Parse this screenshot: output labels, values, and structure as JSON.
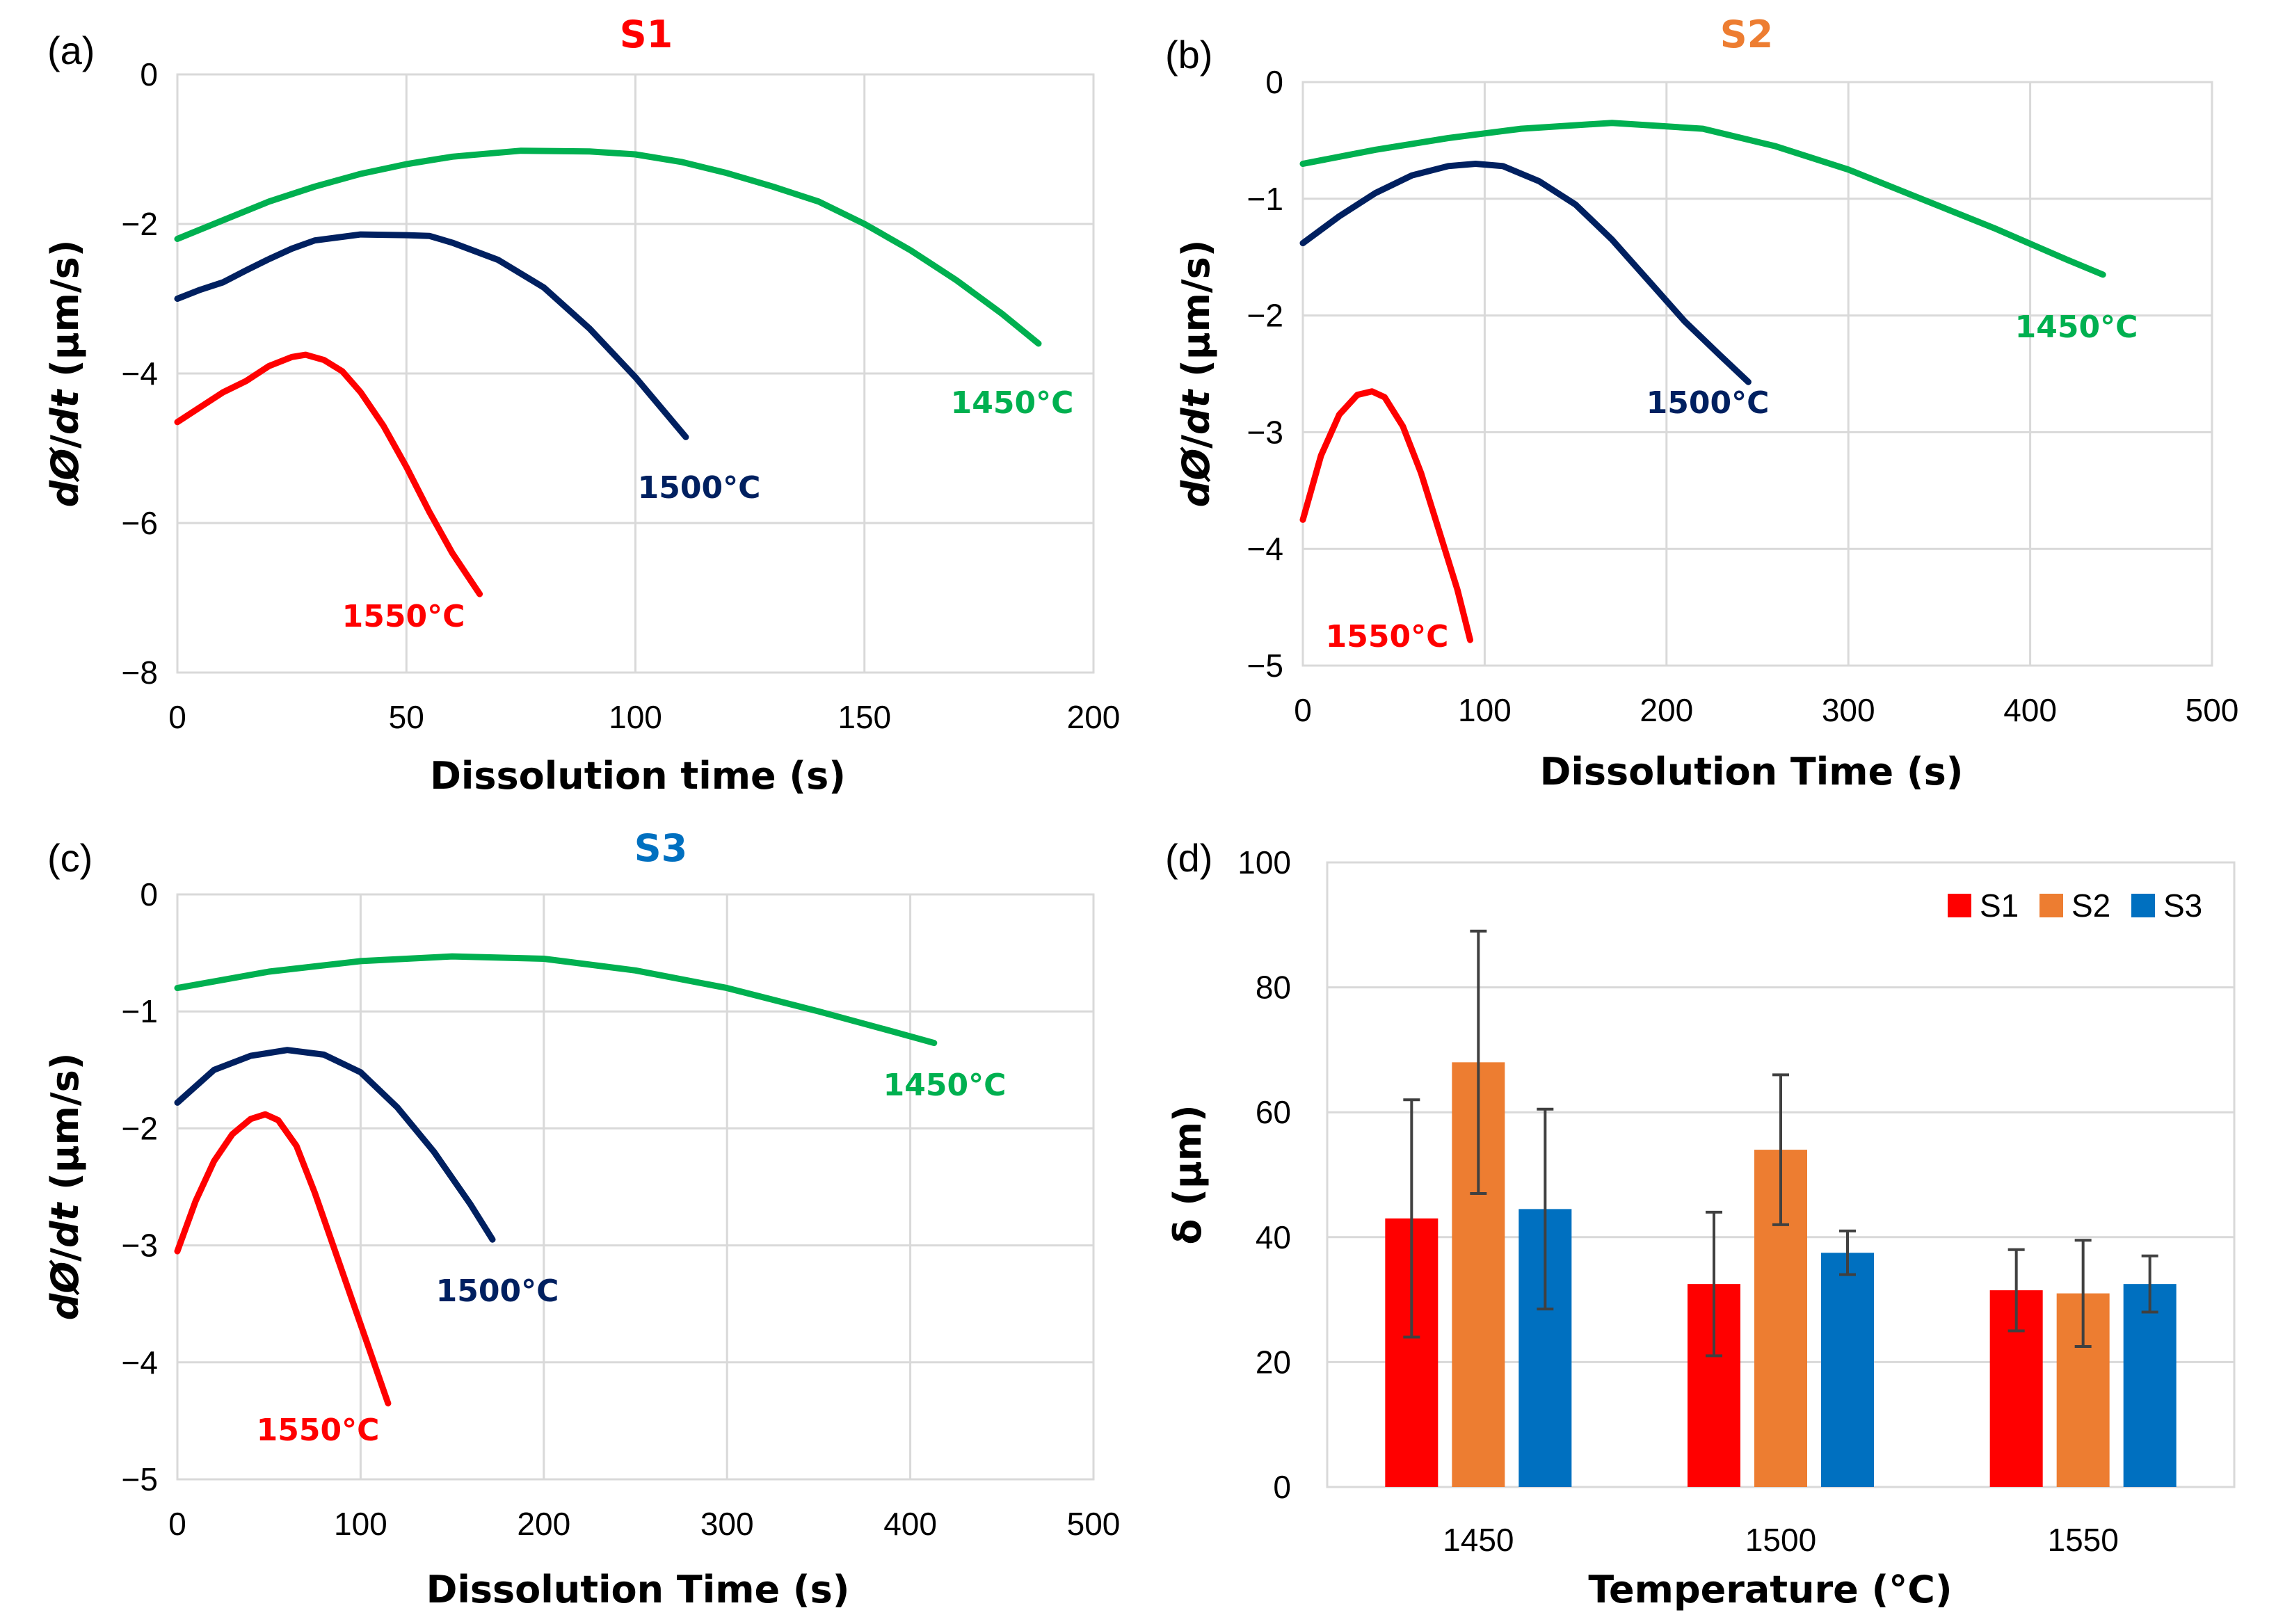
{
  "colors": {
    "s1_red": "#ff0000",
    "s2_orange": "#ed7d31",
    "s3_blue": "#0070c0",
    "t1450_green": "#00b050",
    "t1500_navy": "#002060",
    "t1550_red": "#ff0000"
  },
  "chart_data": [
    {
      "type": "line",
      "panel": "(a)",
      "title": "S1",
      "xlabel": "Dissolution time (s)",
      "ylabel_parts": [
        "d",
        "Ø",
        "/",
        "dt",
        " (µm/s)"
      ],
      "xlim": [
        0,
        200
      ],
      "ylim": [
        -8,
        0
      ],
      "xticks": [
        0,
        50,
        100,
        150,
        200
      ],
      "yticks": [
        0,
        -2,
        -4,
        -6,
        -8
      ],
      "xtick_labels": [
        "0",
        "50",
        "100",
        "150",
        "200"
      ],
      "ytick_labels": [
        "0",
        "−2",
        "−4",
        "−6",
        "−8"
      ],
      "series": [
        {
          "name": "1450°C",
          "label": "1450°C",
          "color_key": "t1450_green",
          "x": [
            0,
            10,
            20,
            30,
            40,
            50,
            60,
            75,
            90,
            100,
            110,
            120,
            130,
            140,
            150,
            160,
            170,
            180,
            188
          ],
          "y": [
            -2.2,
            -1.95,
            -1.7,
            -1.5,
            -1.33,
            -1.2,
            -1.1,
            -1.02,
            -1.03,
            -1.07,
            -1.17,
            -1.32,
            -1.5,
            -1.7,
            -2.0,
            -2.35,
            -2.75,
            -3.2,
            -3.6
          ]
        },
        {
          "name": "1500°C",
          "label": "1500°C",
          "color_key": "t1500_navy",
          "x": [
            0,
            5,
            10,
            15,
            20,
            25,
            30,
            40,
            50,
            55,
            60,
            70,
            80,
            90,
            100,
            111
          ],
          "y": [
            -3.0,
            -2.88,
            -2.78,
            -2.62,
            -2.47,
            -2.33,
            -2.22,
            -2.14,
            -2.15,
            -2.16,
            -2.25,
            -2.48,
            -2.85,
            -3.4,
            -4.05,
            -4.85
          ]
        },
        {
          "name": "1550°C",
          "label": "1550°C",
          "color_key": "t1550_red",
          "x": [
            0,
            5,
            10,
            15,
            20,
            25,
            28,
            32,
            36,
            40,
            45,
            50,
            55,
            60,
            66
          ],
          "y": [
            -4.65,
            -4.45,
            -4.25,
            -4.1,
            -3.9,
            -3.78,
            -3.75,
            -3.82,
            -3.97,
            -4.25,
            -4.7,
            -5.25,
            -5.85,
            -6.4,
            -6.95
          ]
        }
      ]
    },
    {
      "type": "line",
      "panel": "(b)",
      "title": "S2",
      "xlabel": "Dissolution Time (s)",
      "ylabel_parts": [
        "d",
        "Ø",
        "/",
        "dt",
        " (µm/s)"
      ],
      "xlim": [
        0,
        500
      ],
      "ylim": [
        -5,
        0
      ],
      "xticks": [
        0,
        100,
        200,
        300,
        400,
        500
      ],
      "yticks": [
        0,
        -1,
        -2,
        -3,
        -4,
        -5
      ],
      "xtick_labels": [
        "0",
        "100",
        "200",
        "300",
        "400",
        "500"
      ],
      "ytick_labels": [
        "0",
        "−1",
        "−2",
        "−3",
        "−4",
        "−5"
      ],
      "series": [
        {
          "name": "1450°C",
          "label": "1450°C",
          "color_key": "t1450_green",
          "x": [
            0,
            40,
            80,
            120,
            170,
            220,
            260,
            300,
            340,
            380,
            420,
            440
          ],
          "y": [
            -0.7,
            -0.58,
            -0.48,
            -0.4,
            -0.35,
            -0.4,
            -0.55,
            -0.75,
            -1.0,
            -1.25,
            -1.52,
            -1.65
          ]
        },
        {
          "name": "1500°C",
          "label": "1500°C",
          "color_key": "t1500_navy",
          "x": [
            0,
            20,
            40,
            60,
            80,
            95,
            110,
            130,
            150,
            170,
            190,
            210,
            230,
            245
          ],
          "y": [
            -1.38,
            -1.15,
            -0.95,
            -0.8,
            -0.72,
            -0.7,
            -0.72,
            -0.85,
            -1.05,
            -1.35,
            -1.7,
            -2.05,
            -2.35,
            -2.57
          ]
        },
        {
          "name": "1550°C",
          "label": "1550°C",
          "color_key": "t1550_red",
          "x": [
            0,
            10,
            20,
            30,
            38,
            45,
            55,
            65,
            75,
            85,
            92
          ],
          "y": [
            -3.75,
            -3.2,
            -2.85,
            -2.68,
            -2.65,
            -2.7,
            -2.95,
            -3.35,
            -3.85,
            -4.35,
            -4.78
          ]
        }
      ]
    },
    {
      "type": "line",
      "panel": "(c)",
      "title": "S3",
      "xlabel": "Dissolution Time (s)",
      "ylabel_parts": [
        "d",
        "Ø",
        "/",
        "dt",
        " (µm/s)"
      ],
      "xlim": [
        0,
        500
      ],
      "ylim": [
        -5,
        0
      ],
      "xticks": [
        0,
        100,
        200,
        300,
        400,
        500
      ],
      "yticks": [
        0,
        -1,
        -2,
        -3,
        -4,
        -5
      ],
      "xtick_labels": [
        "0",
        "100",
        "200",
        "300",
        "400",
        "500"
      ],
      "ytick_labels": [
        "0",
        "−1",
        "−2",
        "−3",
        "−4",
        "−5"
      ],
      "series": [
        {
          "name": "1450°C",
          "label": "1450°C",
          "color_key": "t1450_green",
          "x": [
            0,
            50,
            100,
            150,
            200,
            250,
            300,
            350,
            390,
            413
          ],
          "y": [
            -0.8,
            -0.66,
            -0.57,
            -0.53,
            -0.55,
            -0.65,
            -0.8,
            -1.0,
            -1.17,
            -1.27
          ]
        },
        {
          "name": "1500°C",
          "label": "1500°C",
          "color_key": "t1500_navy",
          "x": [
            0,
            20,
            40,
            60,
            80,
            100,
            120,
            140,
            160,
            172
          ],
          "y": [
            -1.78,
            -1.5,
            -1.38,
            -1.33,
            -1.37,
            -1.52,
            -1.82,
            -2.2,
            -2.65,
            -2.95
          ]
        },
        {
          "name": "1550°C",
          "label": "1550°C",
          "color_key": "t1550_red",
          "x": [
            0,
            10,
            20,
            30,
            40,
            48,
            55,
            65,
            75,
            85,
            95,
            105,
            115
          ],
          "y": [
            -3.05,
            -2.62,
            -2.28,
            -2.05,
            -1.92,
            -1.88,
            -1.93,
            -2.15,
            -2.55,
            -3.0,
            -3.45,
            -3.9,
            -4.35
          ]
        }
      ]
    },
    {
      "type": "bar",
      "panel": "(d)",
      "title": "",
      "xlabel": "Temperature (°C)",
      "ylabel": "δ (µm)",
      "categories": [
        "1450",
        "1500",
        "1550"
      ],
      "ylim": [
        0,
        100
      ],
      "yticks": [
        0,
        20,
        40,
        60,
        80,
        100
      ],
      "legend_position": "top-right",
      "series": [
        {
          "name": "S1",
          "color_key": "s1_red",
          "values": [
            43,
            32.5,
            31.5
          ],
          "errors": [
            19,
            11.5,
            6.5
          ]
        },
        {
          "name": "S2",
          "color_key": "s2_orange",
          "values": [
            68,
            54,
            31
          ],
          "errors": [
            21,
            12,
            8.5
          ]
        },
        {
          "name": "S3",
          "color_key": "s3_blue",
          "values": [
            44.5,
            37.5,
            32.5
          ],
          "errors": [
            16,
            3.5,
            4.5
          ]
        }
      ]
    }
  ]
}
